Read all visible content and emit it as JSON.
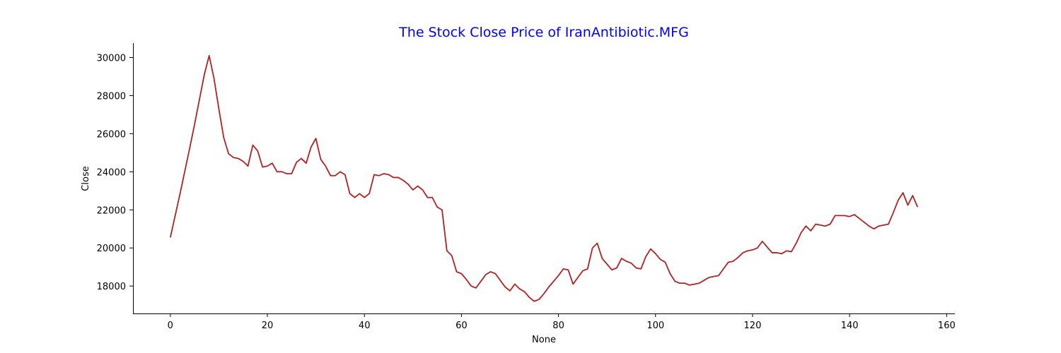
{
  "chart_data": {
    "type": "line",
    "title": "The Stock Close Price of IranAntibiotic.MFG",
    "title_color": "#0000ff",
    "xlabel": "None",
    "ylabel": "Close",
    "xlim": [
      -7.7,
      161.7
    ],
    "ylim": [
      16560,
      30760
    ],
    "x_ticks": [
      0,
      20,
      40,
      60,
      80,
      100,
      120,
      140,
      160
    ],
    "y_ticks": [
      18000,
      20000,
      22000,
      24000,
      26000,
      28000,
      30000
    ],
    "grid": false,
    "legend": "none",
    "series": [
      {
        "color": "#b22222",
        "x_start": 0,
        "values": [
          20550,
          21700,
          22850,
          24050,
          25250,
          26500,
          27800,
          29100,
          30100,
          28900,
          27300,
          25800,
          24950,
          24750,
          24700,
          24550,
          24300,
          25400,
          25100,
          24250,
          24300,
          24450,
          24000,
          24000,
          23900,
          23900,
          24500,
          24700,
          24450,
          25300,
          25750,
          24650,
          24300,
          23800,
          23800,
          24000,
          23850,
          22850,
          22650,
          22850,
          22650,
          22850,
          23850,
          23800,
          23900,
          23850,
          23700,
          23700,
          23550,
          23350,
          23050,
          23250,
          23050,
          22650,
          22650,
          22150,
          22000,
          19850,
          19600,
          18750,
          18650,
          18350,
          18000,
          17900,
          18250,
          18600,
          18750,
          18650,
          18300,
          17950,
          17750,
          18100,
          17850,
          17700,
          17400,
          17200,
          17300,
          17600,
          17950,
          18250,
          18550,
          18900,
          18850,
          18100,
          18450,
          18800,
          18900,
          20000,
          20250,
          19450,
          19150,
          18850,
          18950,
          19450,
          19300,
          19200,
          18950,
          18900,
          19550,
          19950,
          19700,
          19400,
          19250,
          18650,
          18250,
          18150,
          18150,
          18050,
          18100,
          18150,
          18300,
          18450,
          18500,
          18550,
          18900,
          19250,
          19300,
          19500,
          19750,
          19850,
          19900,
          20000,
          20350,
          20050,
          19750,
          19750,
          19700,
          19850,
          19800,
          20250,
          20800,
          21150,
          20900,
          21250,
          21200,
          21150,
          21250,
          21700,
          21700,
          21700,
          21650,
          21750,
          21550,
          21350,
          21150,
          21000,
          21150,
          21200,
          21250,
          21850,
          22500,
          22900,
          22250,
          22750,
          22150
        ]
      }
    ]
  }
}
